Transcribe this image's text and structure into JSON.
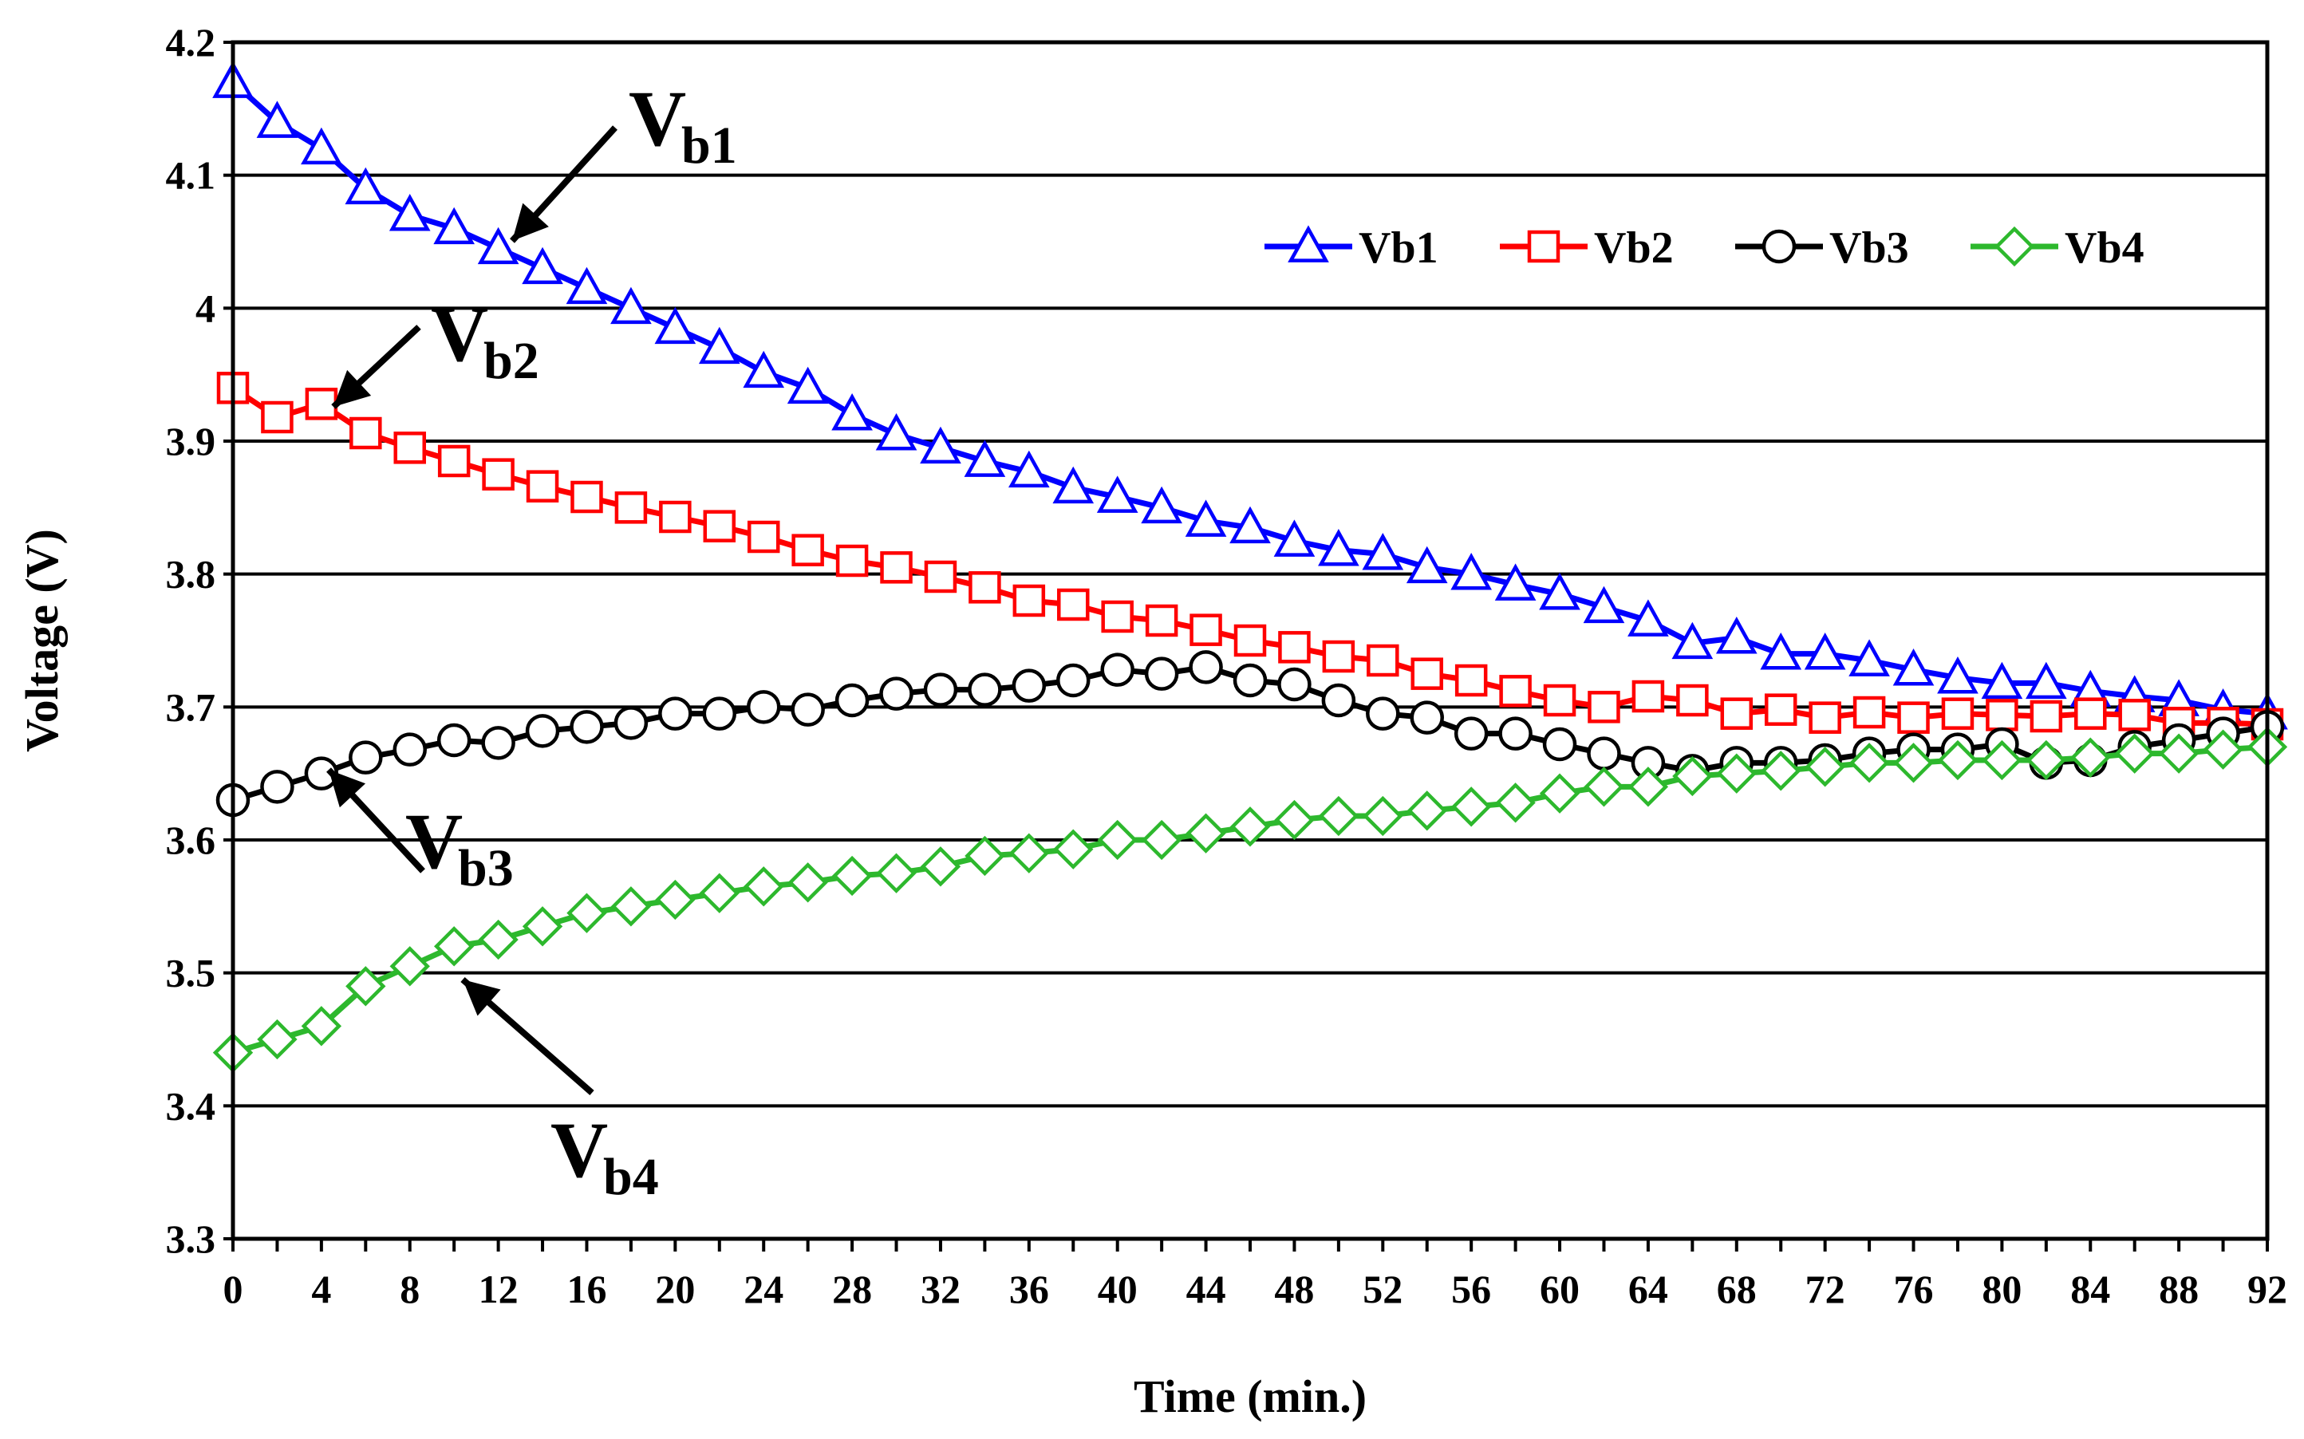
{
  "chart_data": {
    "type": "line",
    "title": "",
    "xlabel": "Time (min.)",
    "ylabel": "Voltage (V)",
    "xlim": [
      0,
      92
    ],
    "ylim": [
      3.3,
      4.2
    ],
    "x_ticks": [
      0,
      4,
      8,
      12,
      16,
      20,
      24,
      28,
      32,
      36,
      40,
      44,
      48,
      52,
      56,
      60,
      64,
      68,
      72,
      76,
      80,
      84,
      88,
      92
    ],
    "x_tick_labels": [
      "0",
      "4",
      "8",
      "12",
      "16",
      "20",
      "24",
      "28",
      "32",
      "36",
      "40",
      "44",
      "48",
      "52",
      "56",
      "60",
      "64",
      "68",
      "72",
      "76",
      "80",
      "84",
      "88",
      "92"
    ],
    "y_ticks": [
      3.3,
      3.4,
      3.5,
      3.6,
      3.7,
      3.8,
      3.9,
      4.0,
      4.1,
      4.2
    ],
    "y_tick_labels": [
      "3.3",
      "3.4",
      "3.5",
      "3.6",
      "3.7",
      "3.8",
      "3.9",
      "4",
      "4.1",
      "4.2"
    ],
    "grid": "horizontal",
    "legend": "top-right",
    "x": [
      0,
      2,
      4,
      6,
      8,
      10,
      12,
      14,
      16,
      18,
      20,
      22,
      24,
      26,
      28,
      30,
      32,
      34,
      36,
      38,
      40,
      42,
      44,
      46,
      48,
      50,
      52,
      54,
      56,
      58,
      60,
      62,
      64,
      66,
      68,
      70,
      72,
      74,
      76,
      78,
      80,
      82,
      84,
      86,
      88,
      90,
      92
    ],
    "series": [
      {
        "name": "Vb1",
        "color": "#0000ff",
        "marker": "triangle",
        "values": [
          4.17,
          4.14,
          4.12,
          4.09,
          4.07,
          4.06,
          4.045,
          4.03,
          4.015,
          4.0,
          3.985,
          3.97,
          3.952,
          3.94,
          3.92,
          3.905,
          3.895,
          3.885,
          3.877,
          3.865,
          3.858,
          3.85,
          3.84,
          3.835,
          3.825,
          3.818,
          3.815,
          3.805,
          3.8,
          3.792,
          3.785,
          3.775,
          3.765,
          3.748,
          3.752,
          3.74,
          3.74,
          3.735,
          3.728,
          3.722,
          3.718,
          3.718,
          3.712,
          3.708,
          3.705,
          3.698,
          3.695
        ]
      },
      {
        "name": "Vb2",
        "color": "#ff0000",
        "marker": "square",
        "values": [
          3.94,
          3.918,
          3.928,
          3.906,
          3.895,
          3.885,
          3.875,
          3.866,
          3.858,
          3.85,
          3.843,
          3.836,
          3.828,
          3.818,
          3.81,
          3.805,
          3.798,
          3.79,
          3.78,
          3.777,
          3.768,
          3.765,
          3.758,
          3.75,
          3.745,
          3.738,
          3.735,
          3.725,
          3.72,
          3.712,
          3.705,
          3.7,
          3.708,
          3.705,
          3.695,
          3.698,
          3.692,
          3.696,
          3.692,
          3.695,
          3.694,
          3.693,
          3.695,
          3.694,
          3.688,
          3.688,
          3.687
        ]
      },
      {
        "name": "Vb3",
        "color": "#000000",
        "marker": "circle",
        "values": [
          3.63,
          3.64,
          3.65,
          3.662,
          3.668,
          3.675,
          3.673,
          3.682,
          3.685,
          3.688,
          3.695,
          3.695,
          3.7,
          3.698,
          3.705,
          3.71,
          3.713,
          3.713,
          3.716,
          3.72,
          3.728,
          3.725,
          3.73,
          3.72,
          3.717,
          3.705,
          3.695,
          3.692,
          3.68,
          3.68,
          3.672,
          3.665,
          3.658,
          3.652,
          3.658,
          3.658,
          3.66,
          3.665,
          3.668,
          3.668,
          3.672,
          3.658,
          3.66,
          3.67,
          3.675,
          3.68,
          3.685
        ]
      },
      {
        "name": "Vb4",
        "color": "#2db82d",
        "marker": "diamond",
        "values": [
          3.44,
          3.45,
          3.46,
          3.49,
          3.505,
          3.52,
          3.525,
          3.535,
          3.545,
          3.55,
          3.555,
          3.56,
          3.565,
          3.568,
          3.573,
          3.575,
          3.58,
          3.588,
          3.59,
          3.593,
          3.6,
          3.6,
          3.605,
          3.61,
          3.615,
          3.618,
          3.618,
          3.622,
          3.625,
          3.628,
          3.635,
          3.64,
          3.64,
          3.648,
          3.65,
          3.652,
          3.655,
          3.658,
          3.658,
          3.66,
          3.66,
          3.66,
          3.662,
          3.665,
          3.665,
          3.668,
          3.67
        ]
      }
    ],
    "annotations": [
      {
        "main": "V",
        "sub": "b1"
      },
      {
        "main": "V",
        "sub": "b2"
      },
      {
        "main": "V",
        "sub": "b3"
      },
      {
        "main": "V",
        "sub": "b4"
      }
    ]
  }
}
